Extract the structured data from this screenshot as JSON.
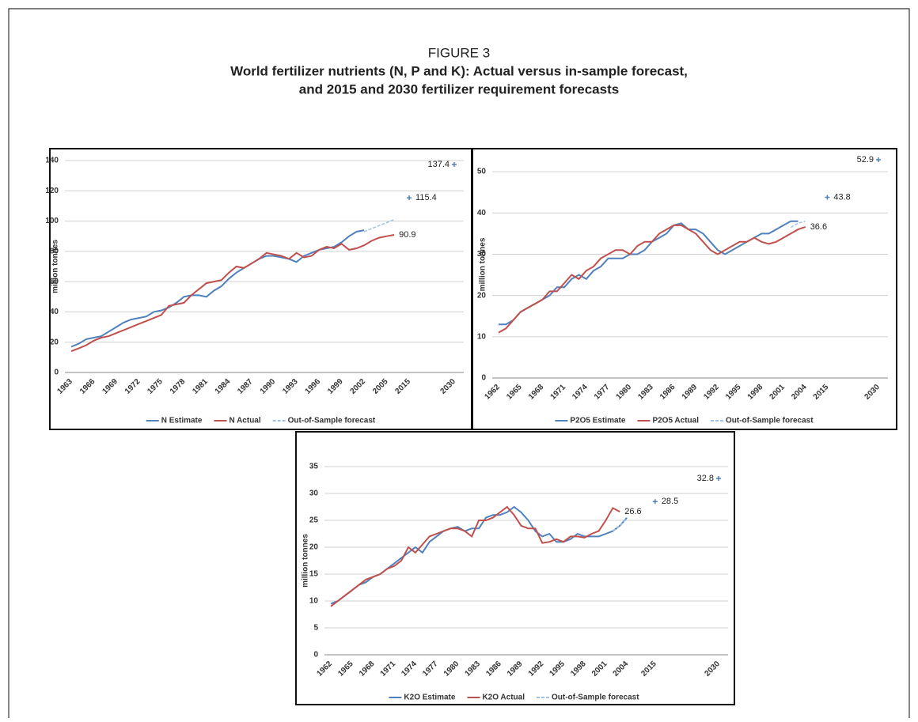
{
  "figure": {
    "label": "FIGURE 3",
    "title": [
      "World fertilizer nutrients (N, P and K): Actual versus in-sample forecast,",
      "and 2015 and 2030 fertilizer requirement forecasts"
    ]
  },
  "chart_data": [
    {
      "type": "line",
      "y_label": "million tonnes",
      "grid": true,
      "ylim": [
        0,
        140
      ],
      "yticks": [
        0,
        20,
        40,
        60,
        80,
        100,
        120,
        140
      ],
      "categories": [
        "1963",
        null,
        null,
        "1966",
        null,
        null,
        "1969",
        null,
        null,
        "1972",
        null,
        null,
        "1975",
        null,
        null,
        "1978",
        null,
        null,
        "1981",
        null,
        null,
        "1984",
        null,
        null,
        "1987",
        null,
        null,
        "1990",
        null,
        null,
        "1993",
        null,
        null,
        "1996",
        null,
        null,
        "1999",
        null,
        null,
        "2002",
        null,
        null,
        "2005",
        null,
        null,
        "2015",
        null,
        null,
        null,
        null,
        null,
        "2030"
      ],
      "series": [
        {
          "name": "N Estimate",
          "color": "#4f81bd",
          "values": [
            17,
            19,
            22,
            23,
            24,
            27,
            30,
            33,
            35,
            36,
            37,
            40,
            41,
            43,
            46,
            50,
            51,
            51,
            50,
            54,
            57,
            62,
            66,
            69,
            72,
            75,
            77,
            77,
            76,
            75,
            73,
            77,
            79,
            81,
            82,
            83,
            86,
            90,
            93,
            94,
            null,
            null,
            null,
            null,
            null,
            null,
            null,
            null,
            null,
            null,
            null,
            null
          ]
        },
        {
          "name": "N Actual",
          "color": "#c0504d",
          "values": [
            14,
            16,
            18,
            21,
            23,
            24,
            26,
            28,
            30,
            32,
            34,
            36,
            38,
            44,
            45,
            46,
            51,
            55,
            59,
            60,
            61,
            66,
            70,
            69,
            72,
            75,
            79,
            78,
            77,
            75,
            79,
            76,
            77,
            81,
            83,
            82,
            85,
            81,
            82,
            84,
            87,
            89,
            90,
            90.9,
            null,
            null,
            null,
            null,
            null,
            null,
            null,
            null
          ]
        },
        {
          "name": "Out-of-Sample forecast",
          "color": "#9dc3e6",
          "values": [
            null,
            null,
            null,
            null,
            null,
            null,
            null,
            null,
            null,
            null,
            null,
            null,
            null,
            null,
            null,
            null,
            null,
            null,
            null,
            null,
            null,
            null,
            null,
            null,
            null,
            null,
            null,
            null,
            null,
            null,
            null,
            null,
            null,
            null,
            null,
            null,
            null,
            null,
            null,
            93,
            95,
            97,
            99,
            101,
            null,
            115.4,
            null,
            null,
            null,
            null,
            null,
            137.4
          ]
        }
      ]
    },
    {
      "type": "line",
      "y_label": "million tonnes",
      "grid": true,
      "ylim": [
        0,
        55
      ],
      "yticks": [
        0,
        10,
        20,
        30,
        40,
        50
      ],
      "categories": [
        "1962",
        null,
        null,
        "1965",
        null,
        null,
        "1968",
        null,
        null,
        "1971",
        null,
        null,
        "1974",
        null,
        null,
        "1977",
        null,
        null,
        "1980",
        null,
        null,
        "1983",
        null,
        null,
        "1986",
        null,
        null,
        "1989",
        null,
        null,
        "1992",
        null,
        null,
        "1995",
        null,
        null,
        "1998",
        null,
        null,
        "2001",
        null,
        null,
        "2004",
        null,
        null,
        "2015",
        null,
        null,
        null,
        null,
        null,
        null,
        "2030"
      ],
      "series": [
        {
          "name": "P2O5 Estimate",
          "color": "#4f81bd",
          "values": [
            13,
            13,
            14,
            16,
            17,
            18,
            19,
            20,
            22,
            22,
            24,
            25,
            24,
            26,
            27,
            29,
            29,
            29,
            30,
            30,
            31,
            33,
            34,
            35,
            37,
            37.5,
            36,
            36,
            35,
            33,
            31,
            30,
            31,
            32,
            33,
            34,
            35,
            35,
            36,
            37,
            38,
            38,
            null,
            null,
            null,
            null,
            null,
            null,
            null,
            null,
            null,
            null,
            null
          ]
        },
        {
          "name": "P2O5 Actual",
          "color": "#c0504d",
          "values": [
            11,
            12,
            14,
            16,
            17,
            18,
            19,
            21,
            21,
            23,
            25,
            24,
            26,
            27,
            29,
            30,
            31,
            31,
            30,
            32,
            33,
            33,
            35,
            36,
            37,
            37,
            36,
            35,
            33,
            31,
            30,
            31,
            32,
            33,
            33,
            34,
            33,
            32.5,
            33,
            34,
            35,
            36,
            36.6,
            null,
            null,
            null,
            null,
            null,
            null,
            null,
            null,
            null,
            null
          ]
        },
        {
          "name": "Out-of-Sample forecast",
          "color": "#9dc3e6",
          "values": [
            null,
            null,
            null,
            null,
            null,
            null,
            null,
            null,
            null,
            null,
            null,
            null,
            null,
            null,
            null,
            null,
            null,
            null,
            null,
            null,
            null,
            null,
            null,
            null,
            null,
            null,
            null,
            null,
            null,
            null,
            null,
            null,
            null,
            null,
            null,
            null,
            null,
            null,
            null,
            null,
            36.5,
            37.5,
            38,
            null,
            null,
            43.8,
            null,
            null,
            null,
            null,
            null,
            null,
            52.9
          ]
        }
      ]
    },
    {
      "type": "line",
      "y_label": "million tonnes",
      "grid": true,
      "ylim": [
        0,
        35
      ],
      "yticks": [
        0,
        5,
        10,
        15,
        20,
        25,
        30,
        35
      ],
      "categories": [
        "1962",
        null,
        null,
        "1965",
        null,
        null,
        "1968",
        null,
        null,
        "1971",
        null,
        null,
        "1974",
        null,
        null,
        "1977",
        null,
        null,
        "1980",
        null,
        null,
        "1983",
        null,
        null,
        "1986",
        null,
        null,
        "1989",
        null,
        null,
        "1992",
        null,
        null,
        "1995",
        null,
        null,
        "1998",
        null,
        null,
        "2001",
        null,
        null,
        "2004",
        null,
        null,
        null,
        "2015",
        null,
        null,
        null,
        null,
        null,
        null,
        null,
        null,
        "2030"
      ],
      "series": [
        {
          "name": "K2O Estimate",
          "color": "#4f81bd",
          "values": [
            9.5,
            10,
            11,
            12,
            13,
            13.5,
            14.5,
            15,
            16,
            17,
            18,
            19,
            20,
            19,
            21,
            22,
            23,
            23.5,
            23.8,
            23,
            23.5,
            23.5,
            25.5,
            26,
            26,
            26.5,
            27.5,
            26.5,
            25,
            23,
            22,
            22.5,
            21,
            21,
            21.5,
            22.5,
            22,
            22,
            22,
            22.5,
            23,
            24,
            25.5,
            null,
            null,
            null,
            null,
            null,
            null,
            null,
            null,
            null,
            null,
            null,
            null,
            null
          ]
        },
        {
          "name": "K2O Actual",
          "color": "#c0504d",
          "values": [
            9,
            10,
            11,
            12,
            13,
            14,
            14.5,
            15,
            16,
            16.5,
            17.5,
            20,
            19,
            20.5,
            22,
            22.5,
            23,
            23.5,
            23.5,
            23,
            22,
            25,
            25,
            25.5,
            26.5,
            27.5,
            26,
            24,
            23.5,
            23.5,
            20.8,
            21,
            21.5,
            21,
            22,
            22,
            21.8,
            22.5,
            23,
            25,
            27.3,
            26.6,
            null,
            null,
            null,
            null,
            null,
            null,
            null,
            null,
            null,
            null,
            null,
            null,
            null,
            null
          ]
        },
        {
          "name": "Out-of-Sample forecast",
          "color": "#9dc3e6",
          "values": [
            null,
            null,
            null,
            null,
            null,
            null,
            null,
            null,
            null,
            null,
            null,
            null,
            null,
            null,
            null,
            null,
            null,
            null,
            null,
            null,
            null,
            null,
            null,
            null,
            null,
            null,
            null,
            null,
            null,
            null,
            null,
            null,
            null,
            null,
            null,
            null,
            null,
            null,
            null,
            null,
            23,
            24,
            25.5,
            null,
            null,
            null,
            28.5,
            null,
            null,
            null,
            null,
            null,
            null,
            null,
            null,
            32.8
          ]
        }
      ]
    }
  ]
}
